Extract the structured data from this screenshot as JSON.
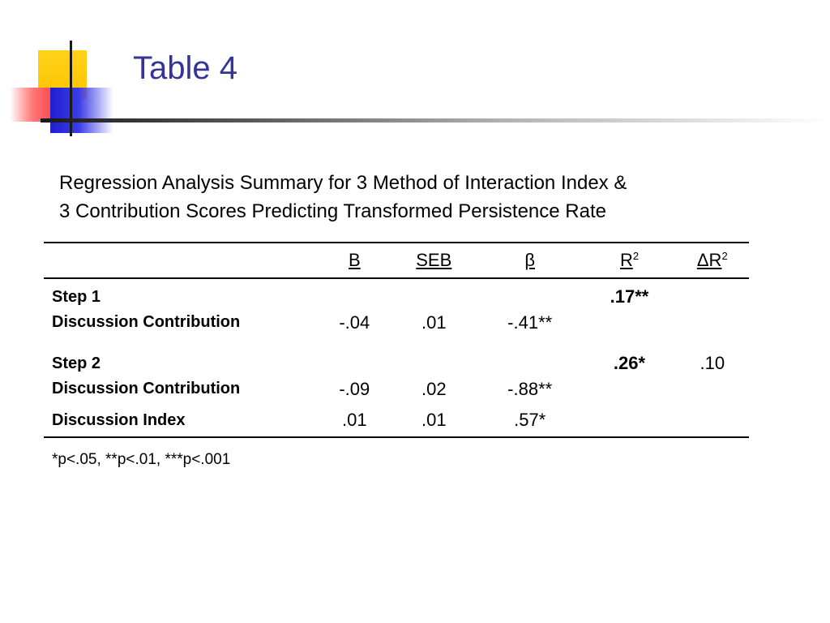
{
  "slide": {
    "title": "Table 4",
    "caption_lines": [
      "Regression Analysis Summary for 3 Method of Interaction Index &",
      "3 Contribution Scores Predicting Transformed Persistence Rate"
    ]
  },
  "table": {
    "headers": {
      "b": "B",
      "seb": "SEB",
      "beta": "β",
      "r2_letter": "R",
      "r2_exp": "2",
      "dr2_letter": "ΔR",
      "dr2_exp": "2"
    },
    "step1": {
      "label": "Step 1",
      "r2": ".17**",
      "rows": [
        {
          "label": "Discussion Contribution",
          "b": "-.04",
          "seb": ".01",
          "beta": "-.41**"
        }
      ]
    },
    "step2": {
      "label": "Step 2",
      "r2": ".26*",
      "dr2": ".10",
      "rows": [
        {
          "label": "Discussion Contribution",
          "b": "-.09",
          "seb": ".02",
          "beta": "-.88**"
        },
        {
          "label": "Discussion Index",
          "b": ".01",
          "seb": ".01",
          "beta": ".57*"
        }
      ]
    },
    "note": "*p<.05, **p<.01, ***p<.001"
  },
  "colors": {
    "title": "#333399",
    "logo_yellow": "#ffc400",
    "logo_red": "#f01b1b",
    "logo_blue": "#1f1fd0"
  }
}
